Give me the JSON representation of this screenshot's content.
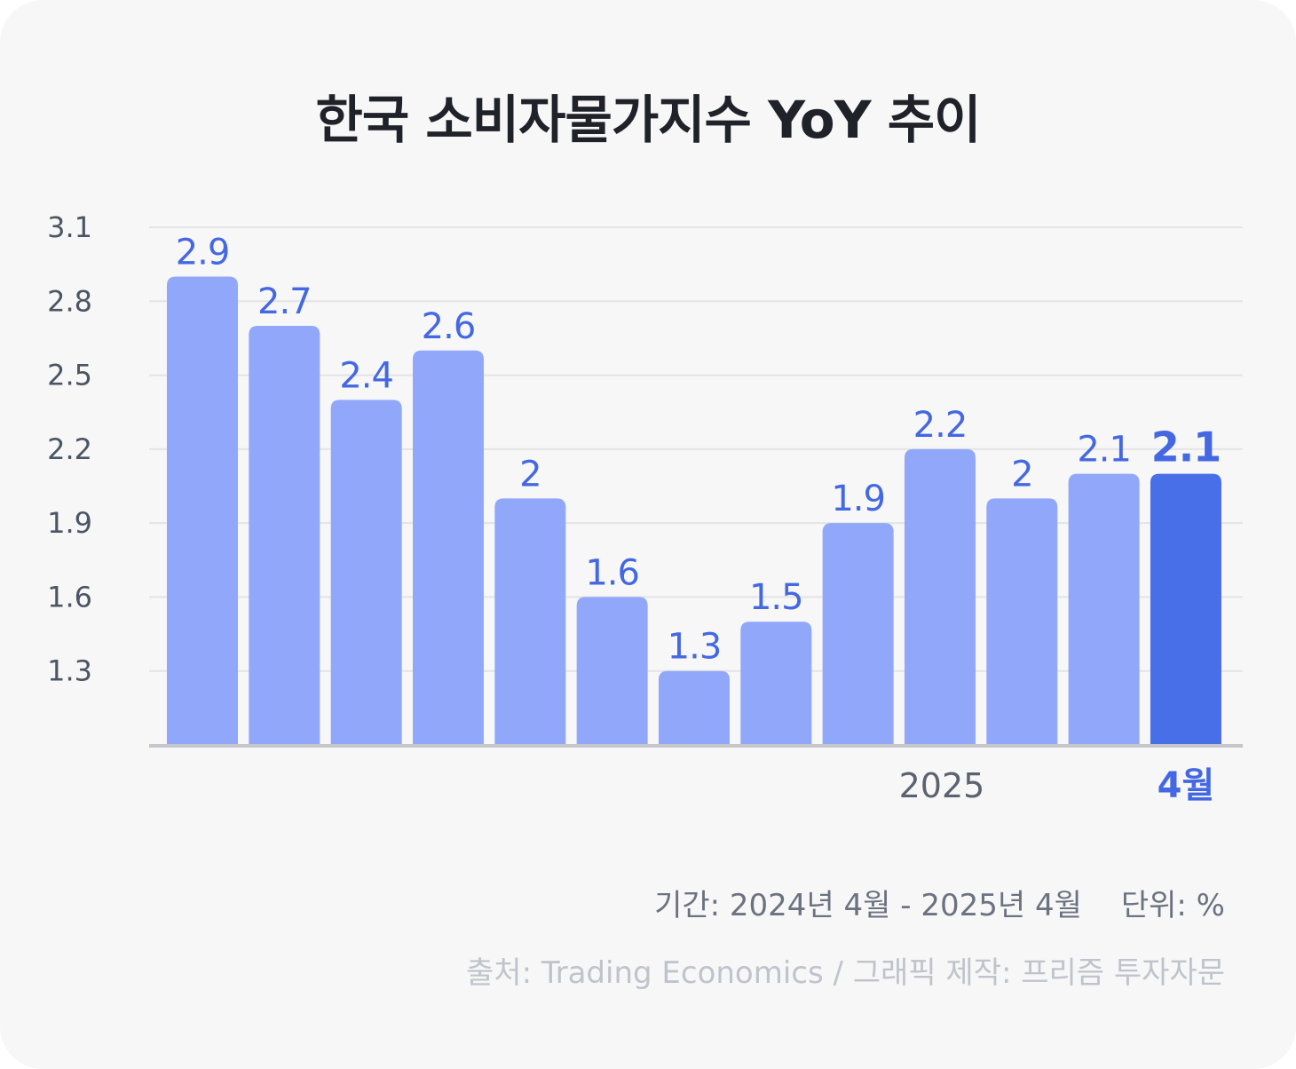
{
  "title": "한국 소비자물가지수 YoY 추이",
  "chart_data": {
    "type": "bar",
    "title": "한국 소비자물가지수 YoY 추이",
    "values": [
      2.9,
      2.7,
      2.4,
      2.6,
      2.0,
      1.6,
      1.3,
      1.5,
      1.9,
      2.2,
      2.0,
      2.1,
      2.1
    ],
    "value_labels": [
      "2.9",
      "2.7",
      "2.4",
      "2.6",
      "2",
      "1.6",
      "1.3",
      "1.5",
      "1.9",
      "2.2",
      "2",
      "2.1",
      "2.1"
    ],
    "x_tick_labels": [
      {
        "index": 9,
        "label": "2025"
      },
      {
        "index": 12,
        "label": "4월"
      }
    ],
    "y_ticks": [
      "3.1",
      "2.8",
      "2.5",
      "2.2",
      "1.9",
      "1.6",
      "1.3"
    ],
    "ylim": [
      1.0,
      3.1
    ],
    "highlight_index": 12,
    "grid": true,
    "colors": {
      "bar": "#91a8fa",
      "bar_highlight": "#486ee8",
      "value_label": "#4468e3",
      "axis_tick": "#4b5563",
      "grid": "#e4e4e4",
      "baseline": "#c6c7cc",
      "year_label": "#5b6270"
    }
  },
  "footer": {
    "period": "기간: 2024년 4월 - 2025년 4월",
    "unit": "단위: %",
    "source": "출처: Trading Economics / 그래픽 제작: 프리즘 투자자문"
  }
}
